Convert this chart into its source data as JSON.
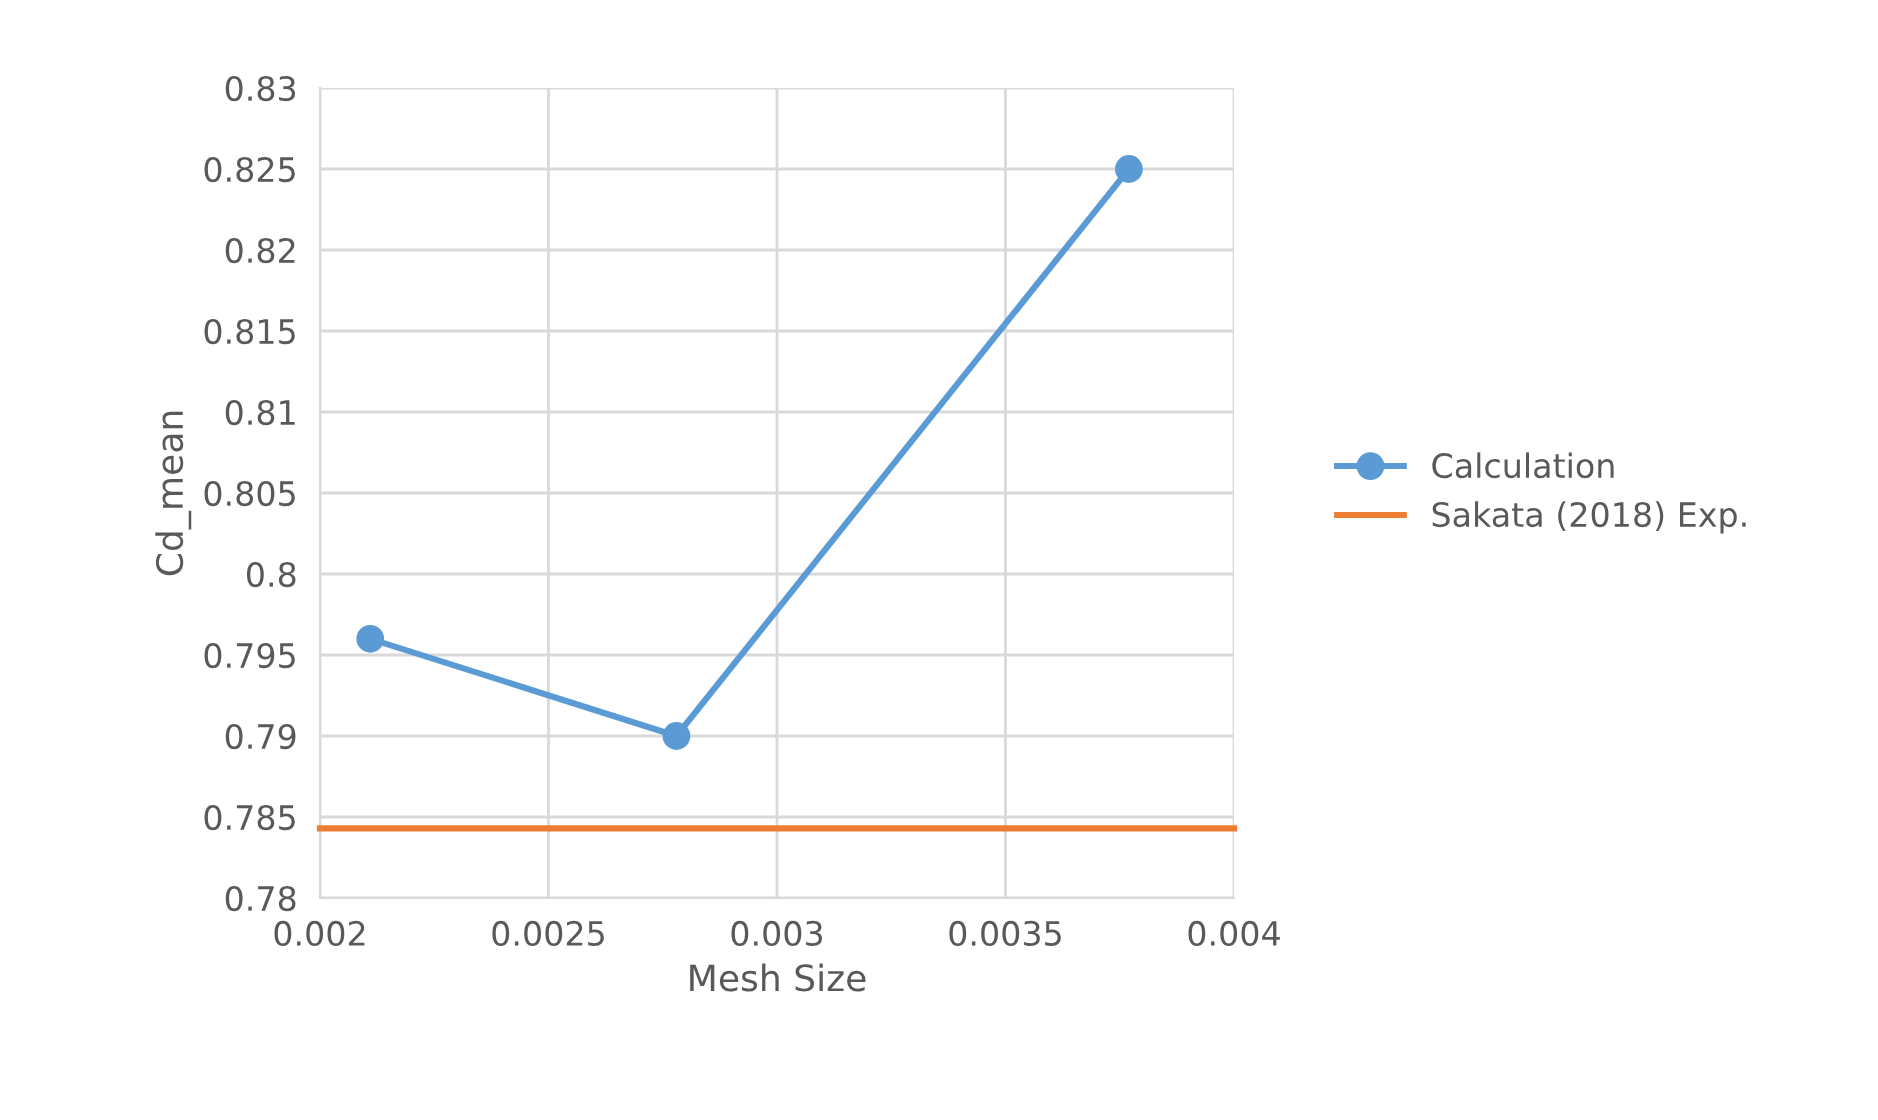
{
  "chart_data": {
    "type": "line",
    "xlabel": "Mesh Size",
    "ylabel": "Cd_mean",
    "xlim": [
      0.002,
      0.004
    ],
    "xticks": [
      0.002,
      0.0025,
      0.003,
      0.0035,
      0.004
    ],
    "ylim": [
      0.78,
      0.83
    ],
    "yticks": [
      0.78,
      0.785,
      0.79,
      0.795,
      0.8,
      0.805,
      0.81,
      0.815,
      0.82,
      0.825,
      0.83
    ],
    "grid": true,
    "legend": "right",
    "marker": "circle",
    "line_style": "solid",
    "series": [
      {
        "name": "Calculation",
        "color": "#5b9bd5",
        "x": [
          0.00211,
          0.00278,
          0.00377
        ],
        "values": [
          0.796,
          0.79,
          0.825
        ]
      },
      {
        "name": "Sakata (2018) Exp.",
        "color": "#ed7d31",
        "x": [
          0.002,
          0.004
        ],
        "values": [
          0.7843,
          0.7843
        ],
        "marker": "none"
      }
    ]
  }
}
